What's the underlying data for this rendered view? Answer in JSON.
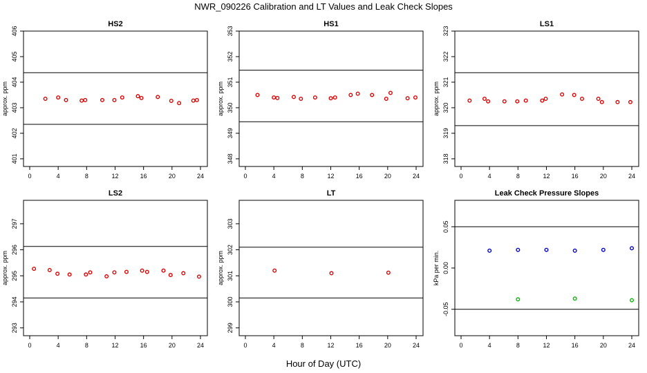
{
  "figure": {
    "title": "NWR_090226  Calibration and LT Values and Leak Check Slopes",
    "xlabel": "Hour of Day (UTC)"
  },
  "chart_data": [
    {
      "type": "scatter",
      "title": "HS2",
      "ylabel": "approx. ppm",
      "xlim": [
        0,
        24
      ],
      "ylim": [
        400.7,
        406.0
      ],
      "xticks": [
        "0",
        "4",
        "8",
        "12",
        "16",
        "20",
        "24"
      ],
      "yticks": [
        "401",
        "402",
        "403",
        "404",
        "405",
        "406"
      ],
      "ytick_values": [
        401,
        402,
        403,
        404,
        405,
        406
      ],
      "hlines": [
        404.37,
        402.35
      ],
      "series": [
        {
          "color": "#dd0000",
          "x": [
            2.2,
            4.0,
            5.1,
            7.3,
            7.8,
            10.2,
            11.9,
            13.0,
            15.2,
            15.7,
            18.0,
            19.9,
            21.0,
            23.0,
            23.5
          ],
          "y": [
            403.35,
            403.4,
            403.3,
            403.28,
            403.3,
            403.3,
            403.3,
            403.4,
            403.45,
            403.38,
            403.42,
            403.27,
            403.18,
            403.28,
            403.3
          ]
        }
      ]
    },
    {
      "type": "scatter",
      "title": "HS1",
      "ylabel": "approx. ppm",
      "xlim": [
        0,
        24
      ],
      "ylim": [
        347.7,
        353.0
      ],
      "xticks": [
        "0",
        "4",
        "8",
        "12",
        "16",
        "20",
        "24"
      ],
      "yticks": [
        "348",
        "349",
        "350",
        "351",
        "352",
        "353"
      ],
      "ytick_values": [
        348,
        349,
        350,
        351,
        352,
        353
      ],
      "hlines": [
        351.47,
        349.45
      ],
      "series": [
        {
          "color": "#dd0000",
          "x": [
            1.7,
            4.0,
            4.5,
            6.8,
            7.8,
            9.8,
            12.0,
            12.6,
            14.8,
            15.8,
            17.8,
            19.8,
            20.4,
            22.8,
            23.9
          ],
          "y": [
            350.5,
            350.4,
            350.38,
            350.42,
            350.35,
            350.4,
            350.37,
            350.4,
            350.5,
            350.55,
            350.5,
            350.35,
            350.58,
            350.37,
            350.4
          ]
        }
      ]
    },
    {
      "type": "scatter",
      "title": "LS1",
      "ylabel": "approx. ppm",
      "xlim": [
        0,
        24
      ],
      "ylim": [
        317.7,
        323.0
      ],
      "xticks": [
        "0",
        "4",
        "8",
        "12",
        "16",
        "20",
        "24"
      ],
      "yticks": [
        "318",
        "319",
        "320",
        "321",
        "322",
        "323"
      ],
      "ytick_values": [
        318,
        319,
        320,
        321,
        322,
        323
      ],
      "hlines": [
        321.37,
        319.3
      ],
      "series": [
        {
          "color": "#dd0000",
          "x": [
            1.2,
            3.3,
            3.8,
            6.1,
            7.9,
            9.1,
            11.4,
            11.9,
            14.2,
            15.9,
            17.0,
            19.3,
            19.8,
            22.0,
            23.8
          ],
          "y": [
            320.28,
            320.35,
            320.25,
            320.25,
            320.25,
            320.28,
            320.28,
            320.35,
            320.52,
            320.5,
            320.35,
            320.35,
            320.22,
            320.22,
            320.22
          ]
        }
      ]
    },
    {
      "type": "scatter",
      "title": "LS2",
      "ylabel": "approx. ppm",
      "xlim": [
        0,
        24
      ],
      "ylim": [
        292.7,
        297.9
      ],
      "xticks": [
        "0",
        "4",
        "8",
        "12",
        "16",
        "20",
        "24"
      ],
      "yticks": [
        "293",
        "294",
        "295",
        "296",
        "297"
      ],
      "ytick_values": [
        293,
        294,
        295,
        296,
        297
      ],
      "hlines": [
        296.13,
        294.15
      ],
      "series": [
        {
          "color": "#dd0000",
          "x": [
            0.6,
            2.8,
            3.9,
            5.6,
            7.9,
            8.5,
            10.8,
            11.9,
            13.6,
            15.8,
            16.5,
            18.8,
            19.8,
            21.6,
            23.8
          ],
          "y": [
            295.27,
            295.22,
            295.08,
            295.05,
            295.05,
            295.13,
            294.98,
            295.13,
            295.15,
            295.2,
            295.15,
            295.2,
            295.03,
            295.1,
            294.97
          ]
        }
      ]
    },
    {
      "type": "scatter",
      "title": "LT",
      "ylabel": "approx. ppm",
      "xlim": [
        0,
        24
      ],
      "ylim": [
        298.7,
        303.9
      ],
      "xticks": [
        "0",
        "4",
        "8",
        "12",
        "16",
        "20",
        "24"
      ],
      "yticks": [
        "299",
        "300",
        "301",
        "302",
        "303"
      ],
      "ytick_values": [
        299,
        300,
        301,
        302,
        303
      ],
      "hlines": [
        302.1,
        300.15
      ],
      "series": [
        {
          "color": "#dd0000",
          "x": [
            4.1,
            12.1,
            20.1
          ],
          "y": [
            301.2,
            301.1,
            301.12
          ]
        }
      ]
    },
    {
      "type": "scatter",
      "title": "Leak Check Pressure Slopes",
      "ylabel": "kPa per min.",
      "xlim": [
        0,
        24
      ],
      "ylim": [
        -0.082,
        0.082
      ],
      "xticks": [
        "0",
        "4",
        "8",
        "12",
        "16",
        "20",
        "24"
      ],
      "yticks": [
        "-0.05",
        "0.00",
        "0.05"
      ],
      "ytick_values": [
        -0.05,
        0.0,
        0.05
      ],
      "hlines": [
        0.05,
        -0.05
      ],
      "series": [
        {
          "color": "#0000cc",
          "x": [
            4.0,
            8.0,
            12.0,
            16.0,
            20.0,
            24.0
          ],
          "y": [
            0.021,
            0.022,
            0.022,
            0.021,
            0.022,
            0.024
          ]
        },
        {
          "color": "#00bb00",
          "x": [
            8.0,
            16.0,
            24.0
          ],
          "y": [
            -0.038,
            -0.037,
            -0.039
          ]
        }
      ]
    }
  ]
}
